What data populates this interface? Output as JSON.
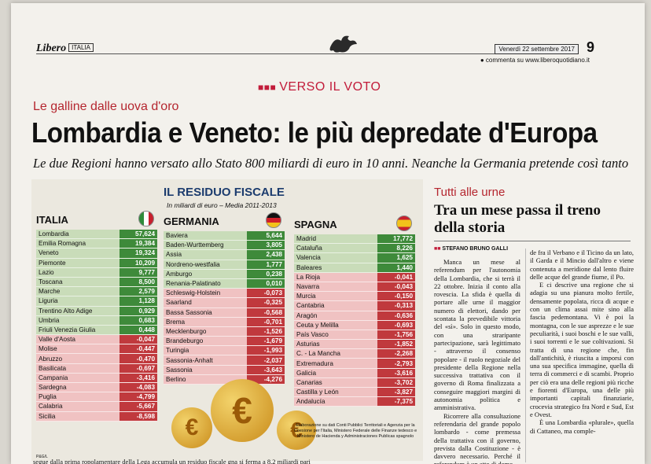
{
  "masthead": {
    "brand": "Libero",
    "brand_section": "ITALIA",
    "date": "Venerdì 22 settembre 2017",
    "page_number": "9",
    "comment": "commenta su www.liberoquotidiano.it"
  },
  "kicker": "VERSO IL VOTO",
  "overline": "Le galline dalle uova d'oro",
  "headline": "Lombardia e Veneto: le più depredate d'Europa",
  "subhead": "Le due Regioni hanno versato allo Stato 800 miliardi di euro in 10 anni. Neanche la Germania pretende così tanto",
  "infographic": {
    "title": "IL RESIDUO FISCALE",
    "subtitle": "In miliardi di euro – Media 2011-2013",
    "credits": "Elaborazione su dati Conti Pubblici Territoriali e Agenzia per la Coesione per l'Italia, Ministero Federale delle Finanze tedesco e Ministero de Hacienda y Administraciones Publicas spagnolo",
    "page_mark": "P&G/L",
    "columns": [
      {
        "country": "ITALIA",
        "rows": [
          {
            "name": "Lombardia",
            "value": "57,624"
          },
          {
            "name": "Emilia Romagna",
            "value": "19,384"
          },
          {
            "name": "Veneto",
            "value": "19,324"
          },
          {
            "name": "Piemonte",
            "value": "10,209"
          },
          {
            "name": "Lazio",
            "value": "9,777"
          },
          {
            "name": "Toscana",
            "value": "8,500"
          },
          {
            "name": "Marche",
            "value": "2,579"
          },
          {
            "name": "Liguria",
            "value": "1,128"
          },
          {
            "name": "Trentino Alto Adige",
            "value": "0,929"
          },
          {
            "name": "Umbria",
            "value": "0,683"
          },
          {
            "name": "Friuli Venezia Giulia",
            "value": "0,448"
          },
          {
            "name": "Valle d'Aosta",
            "value": "-0,047"
          },
          {
            "name": "Molise",
            "value": "-0,447"
          },
          {
            "name": "Abruzzo",
            "value": "-0,470"
          },
          {
            "name": "Basilicata",
            "value": "-0,697"
          },
          {
            "name": "Campania",
            "value": "-3,416"
          },
          {
            "name": "Sardegna",
            "value": "-4,083"
          },
          {
            "name": "Puglia",
            "value": "-4,799"
          },
          {
            "name": "Calabria",
            "value": "-5,667"
          },
          {
            "name": "Sicilia",
            "value": "-8,598"
          }
        ]
      },
      {
        "country": "GERMANIA",
        "rows": [
          {
            "name": "Baviera",
            "value": "5,644"
          },
          {
            "name": "Baden-Wurttemberg",
            "value": "3,805"
          },
          {
            "name": "Assia",
            "value": "2,438"
          },
          {
            "name": "Nordreno-westfalia",
            "value": "1,777"
          },
          {
            "name": "Amburgo",
            "value": "0,238"
          },
          {
            "name": "Renania-Palatinato",
            "value": "0,010"
          },
          {
            "name": "Schleswig-Holstein",
            "value": "-0,073"
          },
          {
            "name": "Saarland",
            "value": "-0,325"
          },
          {
            "name": "Bassa Sassonia",
            "value": "-0,568"
          },
          {
            "name": "Brema",
            "value": "-0,701"
          },
          {
            "name": "Mecklenburgo",
            "value": "-1,526"
          },
          {
            "name": "Brandeburgo",
            "value": "-1,679"
          },
          {
            "name": "Turingia",
            "value": "-1,993"
          },
          {
            "name": "Sassonia-Anhalt",
            "value": "-2,037"
          },
          {
            "name": "Sassonia",
            "value": "-3,643"
          },
          {
            "name": "Berlino",
            "value": "-4,276"
          }
        ]
      },
      {
        "country": "SPAGNA",
        "rows": [
          {
            "name": "Madrid",
            "value": "17,772"
          },
          {
            "name": "Cataluña",
            "value": "8,226"
          },
          {
            "name": "Valencia",
            "value": "1,625"
          },
          {
            "name": "Baleares",
            "value": "1,440"
          },
          {
            "name": "La Rioja",
            "value": "-0,041"
          },
          {
            "name": "Navarra",
            "value": "-0,043"
          },
          {
            "name": "Murcia",
            "value": "-0,150"
          },
          {
            "name": "Cantabria",
            "value": "-0,313"
          },
          {
            "name": "Aragón",
            "value": "-0,636"
          },
          {
            "name": "Ceuta y Melilla",
            "value": "-0,693"
          },
          {
            "name": "País Vasco",
            "value": "-1,756"
          },
          {
            "name": "Asturias",
            "value": "-1,852"
          },
          {
            "name": "C. - La Mancha",
            "value": "-2,268"
          },
          {
            "name": "Extremadura",
            "value": "-2,793"
          },
          {
            "name": "Galicia",
            "value": "-3,616"
          },
          {
            "name": "Canarias",
            "value": "-3,702"
          },
          {
            "name": "Castilla y León",
            "value": "-3,827"
          },
          {
            "name": "Andalucía",
            "value": "-7,375"
          }
        ]
      }
    ]
  },
  "article": {
    "section": "Tutti alle urne",
    "title": "Tra un mese passa il treno della storia",
    "byline": "STEFANO BRUNO GALLI",
    "col1": [
      "Manca un mese al referendum per l'autonomia della Lombardia, che si terrà il 22 ottobre. Inizia il conto alla rovescia. La sfida è quella di portare alle urne il maggior numero di elettori, dando per scontata la prevedibile vittoria del «sì». Solo in questo modo, con una straripante partecipazione, sarà legittimato - attraverso il consenso popolare - il ruolo negoziale del presidente della Regione nella successiva trattativa con il governo di Roma finalizzata a conseguire maggiori margini di autonomia politica e amministrativa.",
      "Ricorrere alla consultazione referendaria del grande popolo lombardo - come premessa della trattativa con il governo, prevista dalla Costituzione - è davvero necessario. Perché il referendum è un atto di demo-"
    ],
    "col2": [
      "de fra il Verbano e il Ticino da un lato, il Garda e il Mincio dall'altro e viene contenuta a meridione dal lento fluire delle acque del grande fiume, il Po.",
      "E ci descrive una regione che si adagia su una pianura molto fertile, densamente popolata, ricca di acque e con un clima assai mite sino alla fascia pedemontana. Vi è poi la montagna, con le sue asprezze e le sue peculiarità, i suoi boschi e le sue valli, i suoi torrenti e le sue coltivazioni. Si tratta di una regione che, fin dall'antichità, è riuscita a imporsi con una sua specifica immagine, quella di terra di commerci e di scambi. Proprio per ciò era una delle regioni più ricche e fiorenti d'Europa, una delle più importanti capitali finanziarie, crocevia strategico fra Nord e Sud, Est e Ovest.",
      "È una Lombardia «plurale», quella di Cattaneo, ma comple-"
    ]
  },
  "bottom_text": "segue dalla prima        ropolamentare della Lega        accumula un residuo fiscale        gna si ferma a 8,2 miliardi pari"
}
